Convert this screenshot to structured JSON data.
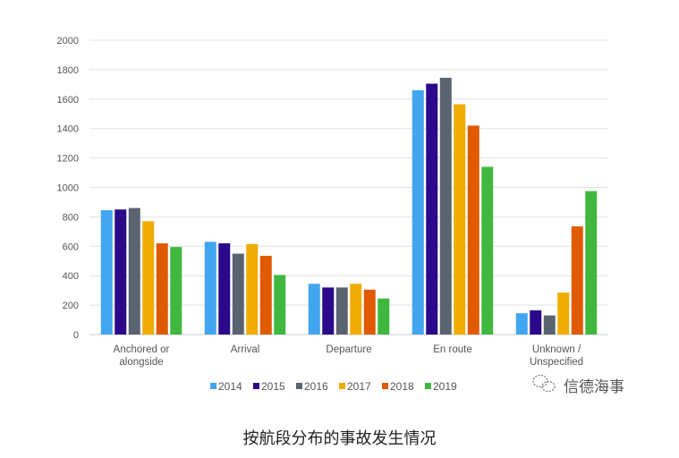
{
  "chart_data": {
    "type": "bar",
    "categories": [
      [
        "Anchored or",
        "alongside"
      ],
      [
        "Arrival"
      ],
      [
        "Departure"
      ],
      [
        "En route"
      ],
      [
        "Unknown /",
        "Unspecified"
      ]
    ],
    "series": [
      {
        "name": "2014",
        "color": "#42a5f0",
        "values": [
          845,
          630,
          345,
          1660,
          145
        ]
      },
      {
        "name": "2015",
        "color": "#2a0a8a",
        "values": [
          850,
          620,
          320,
          1705,
          165
        ]
      },
      {
        "name": "2016",
        "color": "#5a6470",
        "values": [
          860,
          550,
          320,
          1745,
          130
        ]
      },
      {
        "name": "2017",
        "color": "#f0ac00",
        "values": [
          770,
          615,
          345,
          1565,
          285
        ]
      },
      {
        "name": "2018",
        "color": "#e05a00",
        "values": [
          620,
          535,
          305,
          1420,
          735
        ]
      },
      {
        "name": "2019",
        "color": "#40b840",
        "values": [
          595,
          405,
          245,
          1140,
          975
        ]
      }
    ],
    "ylim": [
      0,
      2000
    ],
    "yticks": [
      0,
      200,
      400,
      600,
      800,
      1000,
      1200,
      1400,
      1600,
      1800,
      2000
    ],
    "grid": true,
    "legend_position": "bottom"
  },
  "watermark": {
    "text": "信德海事",
    "icon": "wechat-icon"
  },
  "caption": "按航段分布的事故发生情况"
}
